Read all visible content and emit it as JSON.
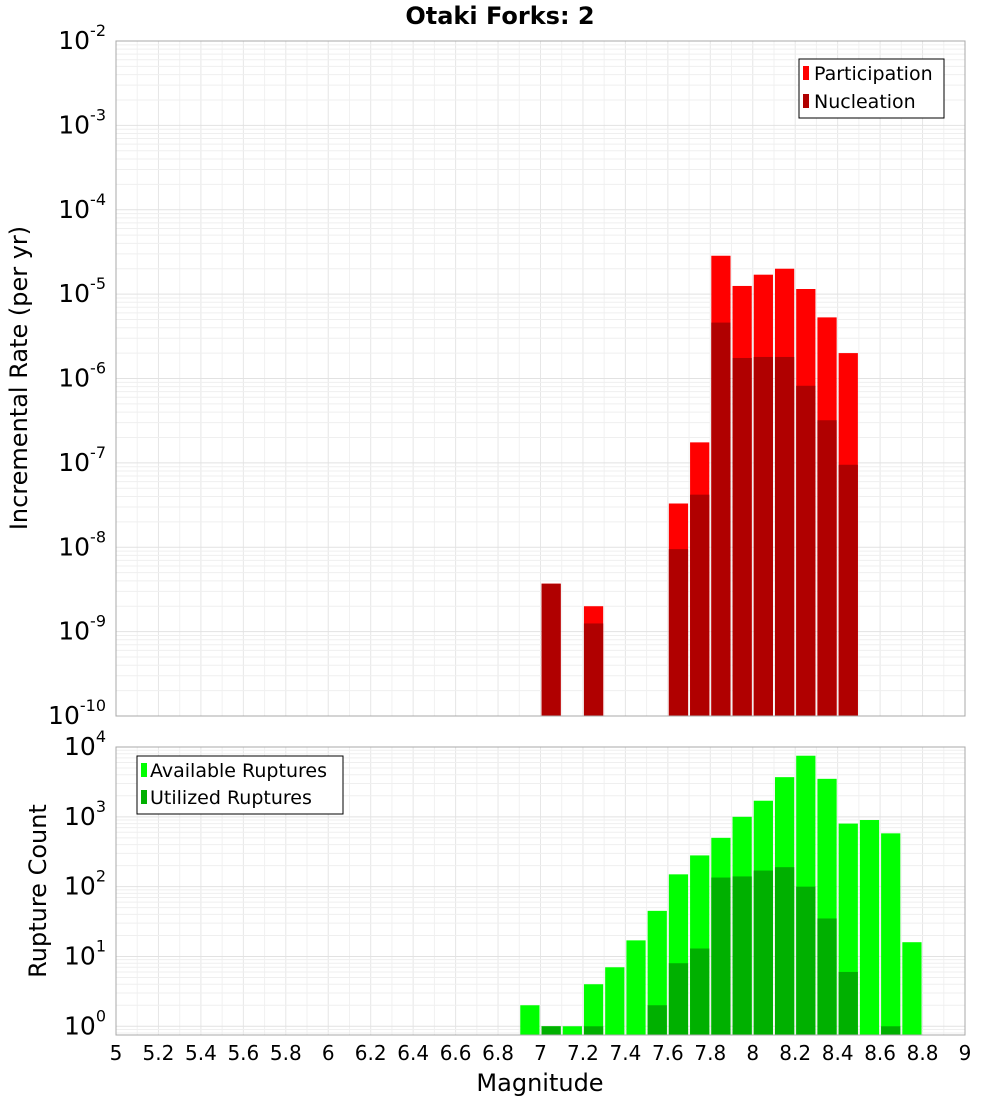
{
  "chart_data": [
    {
      "type": "bar",
      "title": "Otaki Forks: 2",
      "xlabel": "",
      "ylabel": "Incremental Rate (per yr)",
      "yscale": "log",
      "ylim": [
        1e-10,
        0.01
      ],
      "xlim": [
        5,
        9
      ],
      "grid": true,
      "legend_position": "top-right",
      "series": [
        {
          "name": "Participation",
          "color": "#ff0000",
          "x": [
            7.05,
            7.25,
            7.65,
            7.75,
            7.85,
            7.95,
            8.05,
            8.15,
            8.25,
            8.35,
            8.45
          ],
          "values": [
            3.7e-09,
            2e-09,
            3.3e-08,
            1.75e-07,
            2.85e-05,
            1.25e-05,
            1.7e-05,
            2e-05,
            1.15e-05,
            5.3e-06,
            2e-06
          ]
        },
        {
          "name": "Nucleation",
          "color": "#b00000",
          "x": [
            7.05,
            7.25,
            7.65,
            7.75,
            7.85,
            7.95,
            8.05,
            8.15,
            8.25,
            8.35,
            8.45
          ],
          "values": [
            3.7e-09,
            1.25e-09,
            9.5e-09,
            4.2e-08,
            4.6e-06,
            1.75e-06,
            1.8e-06,
            1.8e-06,
            8.2e-07,
            3.2e-07,
            9.5e-08
          ]
        }
      ]
    },
    {
      "type": "bar",
      "xlabel": "Magnitude",
      "ylabel": "Rupture Count",
      "yscale": "log",
      "ylim": [
        0.75,
        10000
      ],
      "xlim": [
        5,
        9
      ],
      "grid": true,
      "legend_position": "top-left",
      "xticks": [
        "5",
        "5.2",
        "5.4",
        "5.6",
        "5.8",
        "6",
        "6.2",
        "6.4",
        "6.6",
        "6.8",
        "7",
        "7.2",
        "7.4",
        "7.6",
        "7.8",
        "8",
        "8.2",
        "8.4",
        "8.6",
        "8.8",
        "9"
      ],
      "series": [
        {
          "name": "Available Ruptures",
          "color": "#00ff00",
          "x": [
            6.95,
            7.05,
            7.15,
            7.25,
            7.35,
            7.45,
            7.55,
            7.65,
            7.75,
            7.85,
            7.95,
            8.05,
            8.15,
            8.25,
            8.35,
            8.45,
            8.55,
            8.65,
            8.75
          ],
          "values": [
            2,
            1,
            1,
            4,
            7,
            17,
            45,
            150,
            280,
            500,
            1000,
            1700,
            3700,
            7500,
            3500,
            800,
            900,
            580,
            16
          ]
        },
        {
          "name": "Utilized Ruptures",
          "color": "#00b000",
          "x": [
            7.05,
            7.25,
            7.55,
            7.65,
            7.75,
            7.85,
            7.95,
            8.05,
            8.15,
            8.25,
            8.35,
            8.45,
            8.65
          ],
          "values": [
            1,
            1,
            2,
            8,
            13,
            135,
            140,
            170,
            190,
            100,
            35,
            6,
            1
          ]
        }
      ]
    }
  ]
}
